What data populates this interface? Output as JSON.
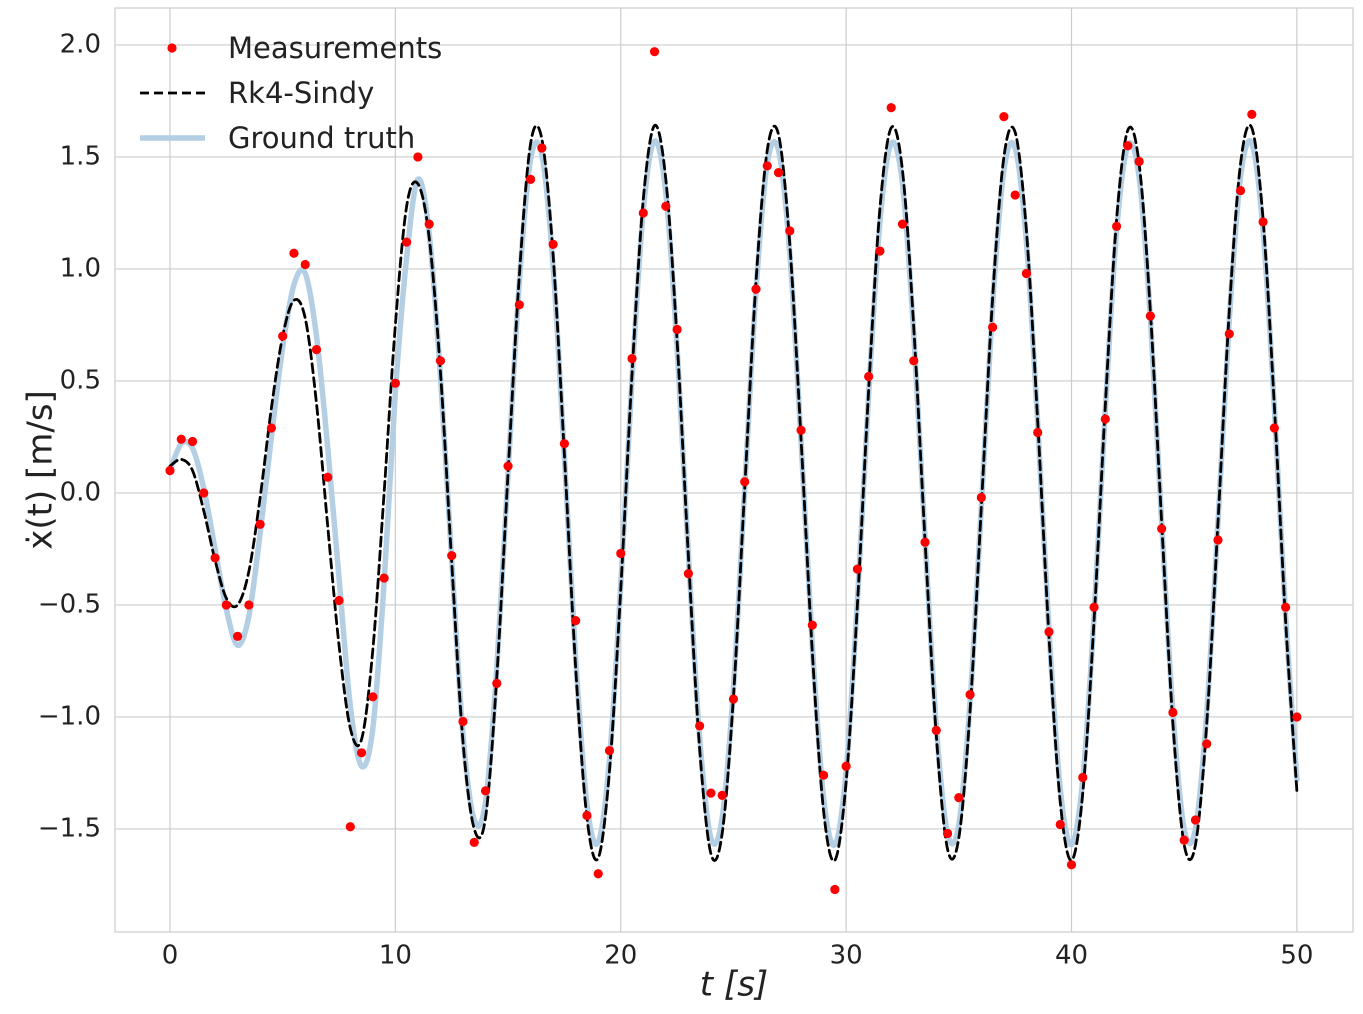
{
  "chart_data": {
    "type": "line",
    "xlabel": "t [s]",
    "ylabel": "ẋ(t) [m/s]",
    "xlim": [
      -2.44,
      52.49
    ],
    "ylim": [
      -1.96,
      2.165
    ],
    "xticks": [
      0,
      10,
      20,
      30,
      40,
      50
    ],
    "yticks": [
      {
        "value": -1.5,
        "label": "−1.5"
      },
      {
        "value": -1.0,
        "label": "−1.0"
      },
      {
        "value": -0.5,
        "label": "−0.5"
      },
      {
        "value": 0.0,
        "label": "0.0"
      },
      {
        "value": 0.5,
        "label": "0.5"
      },
      {
        "value": 1.0,
        "label": "1.0"
      },
      {
        "value": 1.5,
        "label": "1.5"
      },
      {
        "value": 2.0,
        "label": "2.0"
      }
    ],
    "grid": true,
    "legend": "upper left",
    "x": [
      0,
      0.5,
      1,
      1.5,
      2,
      2.5,
      3,
      3.5,
      4,
      4.5,
      5,
      5.5,
      6,
      6.5,
      7,
      7.5,
      8,
      8.5,
      9,
      9.5,
      10,
      10.5,
      11,
      11.5,
      12,
      12.5,
      13,
      13.5,
      14,
      14.5,
      15,
      15.5,
      16,
      16.5,
      17,
      17.5,
      18,
      18.5,
      19,
      19.5,
      20,
      20.5,
      21,
      21.5,
      22,
      22.5,
      23,
      23.5,
      24,
      24.5,
      25,
      25.5,
      26,
      26.5,
      27,
      27.5,
      28,
      28.5,
      29,
      29.5,
      30,
      30.5,
      31,
      31.5,
      32,
      32.5,
      33,
      33.5,
      34,
      34.5,
      35,
      35.5,
      36,
      36.5,
      37,
      37.5,
      38,
      38.5,
      39,
      39.5,
      40,
      40.5,
      41,
      41.5,
      42,
      42.5,
      43,
      43.5,
      44,
      44.5,
      45,
      45.5,
      46,
      46.5,
      47,
      47.5,
      48,
      48.5,
      49,
      49.5,
      50
    ],
    "series": [
      {
        "name": "Measurements",
        "color": "#ff0000",
        "kind": "points",
        "values": [
          0.1,
          0.24,
          0.23,
          0.0,
          -0.29,
          -0.5,
          -0.64,
          -0.5,
          -0.14,
          0.29,
          0.7,
          1.07,
          1.02,
          0.64,
          0.07,
          -0.48,
          -1.49,
          -1.16,
          -0.91,
          -0.38,
          0.49,
          1.12,
          1.5,
          1.2,
          0.59,
          -0.28,
          -1.02,
          -1.56,
          -1.33,
          -0.85,
          0.12,
          0.84,
          1.4,
          1.54,
          1.11,
          0.22,
          -0.57,
          -1.44,
          -1.7,
          -1.15,
          -0.27,
          0.6,
          1.25,
          1.97,
          1.28,
          0.73,
          -0.36,
          -1.04,
          -1.34,
          -1.35,
          -0.92,
          0.05,
          0.91,
          1.46,
          1.43,
          1.17,
          0.28,
          -0.59,
          -1.26,
          -1.77,
          -1.22,
          -0.34,
          0.52,
          1.08,
          1.72,
          1.2,
          0.59,
          -0.22,
          -1.06,
          -1.52,
          -1.36,
          -0.9,
          -0.02,
          0.74,
          1.68,
          1.33,
          0.98,
          0.27,
          -0.62,
          -1.48,
          -1.66,
          -1.27,
          -0.51,
          0.33,
          1.19,
          1.55,
          1.48,
          0.79,
          -0.16,
          -0.98,
          -1.55,
          -1.46,
          -1.12,
          -0.21,
          0.71,
          1.35,
          1.69,
          1.21,
          0.29,
          -0.51,
          -1.0
        ]
      },
      {
        "name": "Rk4-Sindy",
        "color": "#000000",
        "kind": "dashed",
        "values": [
          0.12,
          0.15,
          0.1,
          -0.08,
          -0.3,
          -0.47,
          -0.5,
          -0.35,
          -0.02,
          0.38,
          0.7,
          0.86,
          0.78,
          0.4,
          -0.15,
          -0.68,
          -1.05,
          -1.1,
          -0.7,
          0.0,
          0.75,
          1.28,
          1.38,
          1.14,
          0.54,
          -0.31,
          -1.11,
          -1.5,
          -1.45,
          -0.82,
          0.09,
          0.97,
          1.56,
          1.58,
          1.06,
          0.17,
          -0.78,
          -1.45,
          -1.63,
          -1.24,
          -0.43,
          0.53,
          1.31,
          1.64,
          1.4,
          0.68,
          -0.28,
          -1.14,
          -1.61,
          -1.52,
          -0.91,
          0.02,
          0.94,
          1.53,
          1.6,
          1.11,
          0.24,
          -0.71,
          -1.42,
          -1.64,
          -1.29,
          -0.5,
          0.46,
          1.27,
          1.63,
          1.44,
          0.74,
          -0.21,
          -1.08,
          -1.59,
          -1.54,
          -0.97,
          -0.06,
          0.87,
          1.5,
          1.61,
          1.17,
          0.32,
          -0.64,
          -1.38,
          -1.64,
          -1.34,
          -0.57,
          0.39,
          1.22,
          1.62,
          1.47,
          0.81,
          -0.13,
          -1.03,
          -1.57,
          -1.57,
          -1.03,
          -0.13,
          0.81,
          1.47,
          1.63,
          1.22,
          0.39,
          -0.57,
          -1.33
        ]
      },
      {
        "name": "Ground truth",
        "color": "#b4cfe4",
        "kind": "solid",
        "values": [
          0.1,
          0.22,
          0.2,
          0.02,
          -0.25,
          -0.52,
          -0.68,
          -0.55,
          -0.18,
          0.25,
          0.65,
          0.93,
          0.98,
          0.7,
          0.2,
          -0.38,
          -0.95,
          -1.22,
          -1.05,
          -0.4,
          0.45,
          1.05,
          1.4,
          1.16,
          0.52,
          -0.3,
          -1.08,
          -1.46,
          -1.38,
          -0.78,
          0.09,
          0.94,
          1.49,
          1.51,
          1.01,
          0.16,
          -0.74,
          -1.39,
          -1.56,
          -1.19,
          -0.41,
          0.51,
          1.26,
          1.57,
          1.34,
          0.65,
          -0.27,
          -1.09,
          -1.54,
          -1.45,
          -0.87,
          0.02,
          0.9,
          1.47,
          1.53,
          1.07,
          0.23,
          -0.68,
          -1.36,
          -1.57,
          -1.24,
          -0.48,
          0.44,
          1.21,
          1.56,
          1.38,
          0.71,
          -0.2,
          -1.04,
          -1.52,
          -1.48,
          -0.93,
          -0.06,
          0.84,
          1.44,
          1.54,
          1.12,
          0.31,
          -0.61,
          -1.32,
          -1.57,
          -1.28,
          -0.55,
          0.37,
          1.17,
          1.55,
          1.41,
          0.78,
          -0.13,
          -0.98,
          -1.5,
          -1.5,
          -0.98,
          -0.13,
          0.77,
          1.41,
          1.56,
          1.17,
          0.38,
          -0.55,
          -1.28
        ]
      }
    ]
  }
}
